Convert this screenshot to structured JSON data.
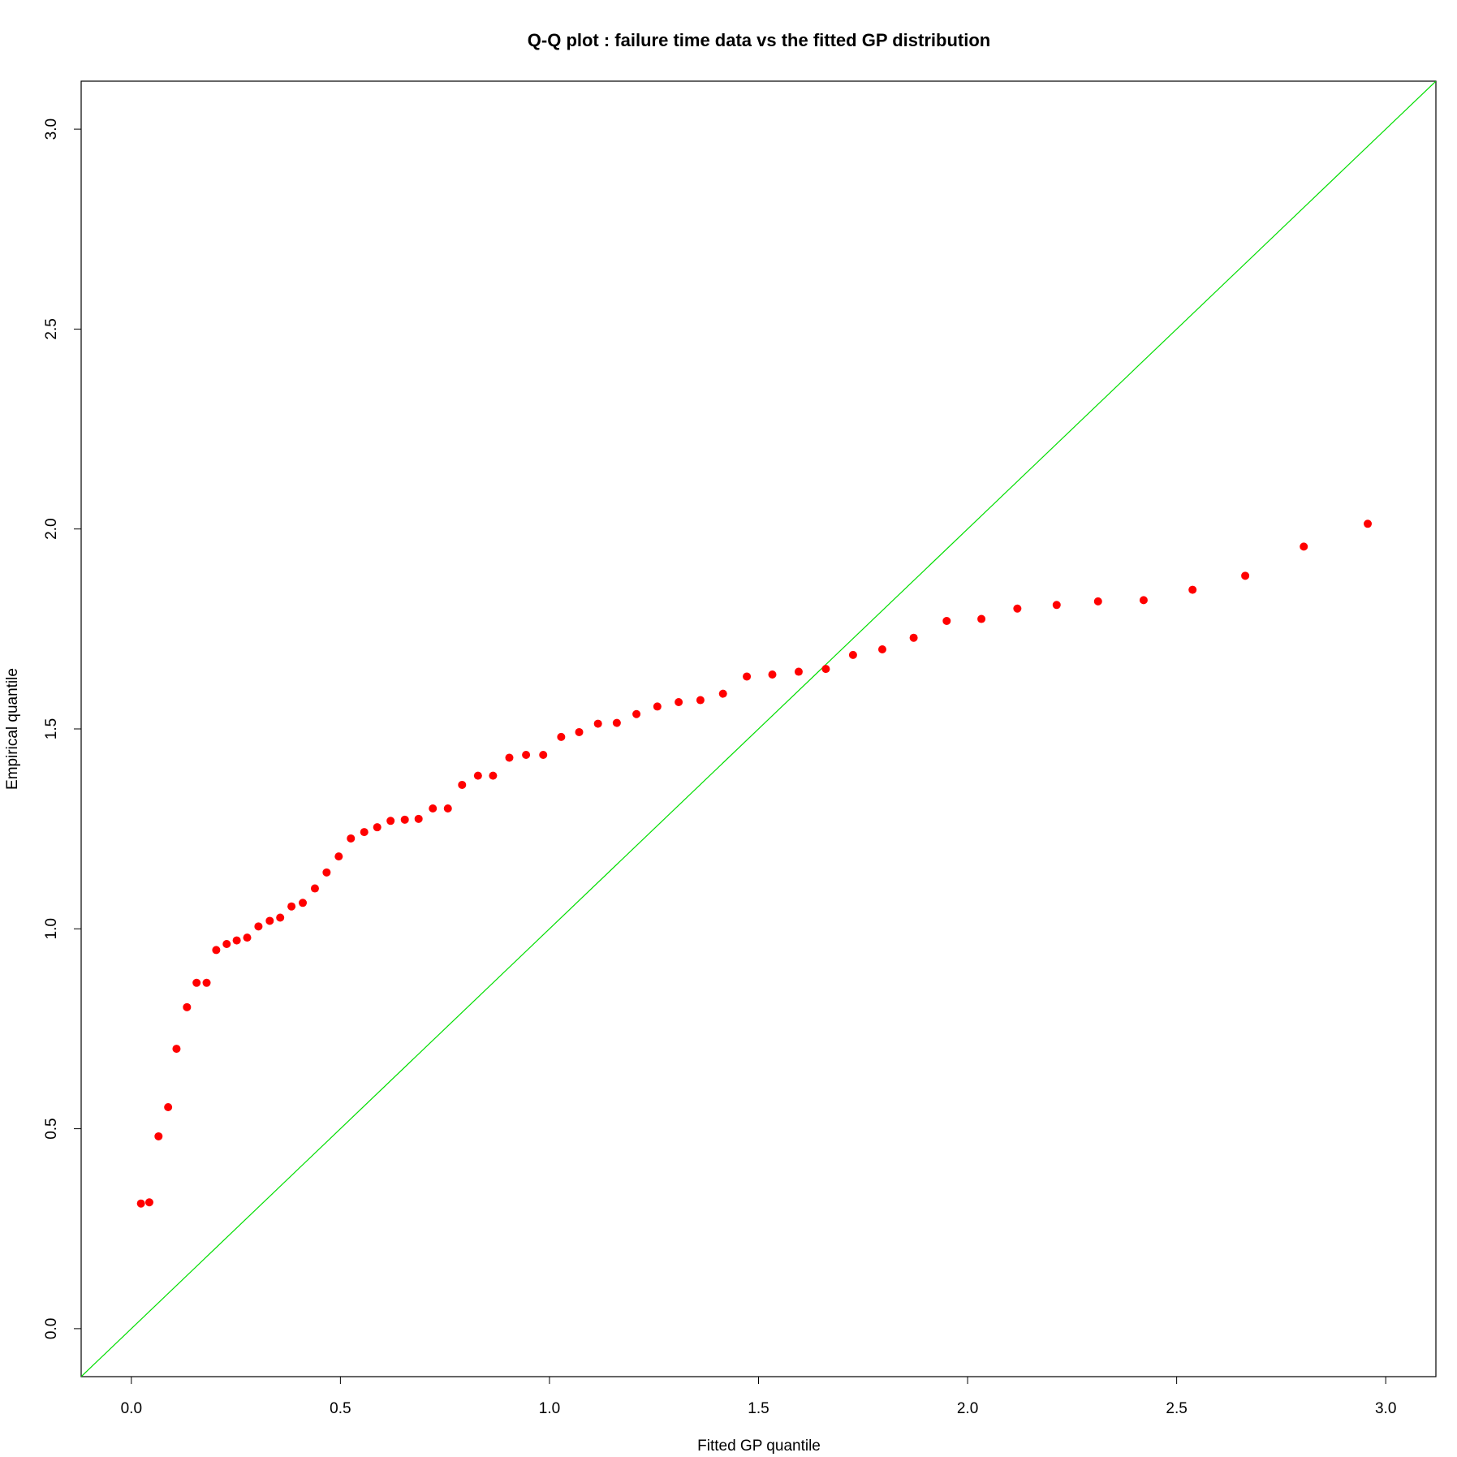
{
  "chart_data": {
    "type": "scatter",
    "title": "Q-Q plot : failure time data vs the fitted GP distribution",
    "x_label": "Fitted GP quantile",
    "y_label": "Empirical quantile",
    "xlim": [
      -0.12,
      3.12
    ],
    "ylim": [
      -0.12,
      3.12
    ],
    "xticks": [
      {
        "value": 0,
        "label": "0.0"
      },
      0.5,
      {
        "value": 1,
        "label": "1.0"
      },
      1.5,
      {
        "value": 2,
        "label": "2.0"
      },
      2.5,
      {
        "value": 3,
        "label": "3.0"
      }
    ],
    "yticks": [
      {
        "value": 0,
        "label": "0.0"
      },
      0.5,
      {
        "value": 1,
        "label": "1.0"
      },
      1.5,
      {
        "value": 2,
        "label": "2.0"
      },
      2.5,
      {
        "value": 3,
        "label": "3.0"
      }
    ],
    "reference_line": {
      "intercept": 0,
      "slope": 1,
      "color": "#00dd00"
    },
    "series": [
      {
        "color": "#ff0000",
        "x": [
          0.023,
          0.043,
          0.065,
          0.088,
          0.108,
          0.133,
          0.156,
          0.18,
          0.203,
          0.228,
          0.252,
          0.277,
          0.304,
          0.331,
          0.356,
          0.383,
          0.41,
          0.439,
          0.467,
          0.496,
          0.525,
          0.557,
          0.588,
          0.62,
          0.654,
          0.687,
          0.721,
          0.757,
          0.791,
          0.829,
          0.865,
          0.904,
          0.944,
          0.985,
          1.028,
          1.071,
          1.116,
          1.161,
          1.208,
          1.258,
          1.309,
          1.361,
          1.415,
          1.472,
          1.533,
          1.596,
          1.661,
          1.726,
          1.796,
          1.871,
          1.95,
          2.033,
          2.119,
          2.213,
          2.312,
          2.421,
          2.538,
          2.664,
          2.804,
          2.957
        ],
        "values": [
          0.313,
          0.316,
          0.481,
          0.554,
          0.7,
          0.804,
          0.865,
          0.865,
          0.947,
          0.962,
          0.971,
          0.978,
          1.006,
          1.02,
          1.028,
          1.056,
          1.065,
          1.101,
          1.141,
          1.181,
          1.226,
          1.242,
          1.254,
          1.27,
          1.273,
          1.275,
          1.301,
          1.301,
          1.36,
          1.383,
          1.383,
          1.428,
          1.435,
          1.435,
          1.48,
          1.492,
          1.513,
          1.515,
          1.537,
          1.556,
          1.567,
          1.572,
          1.588,
          1.631,
          1.636,
          1.643,
          1.65,
          1.685,
          1.699,
          1.728,
          1.77,
          1.775,
          1.801,
          1.81,
          1.819,
          1.822,
          1.848,
          1.883,
          1.956,
          2.013
        ]
      }
    ]
  }
}
